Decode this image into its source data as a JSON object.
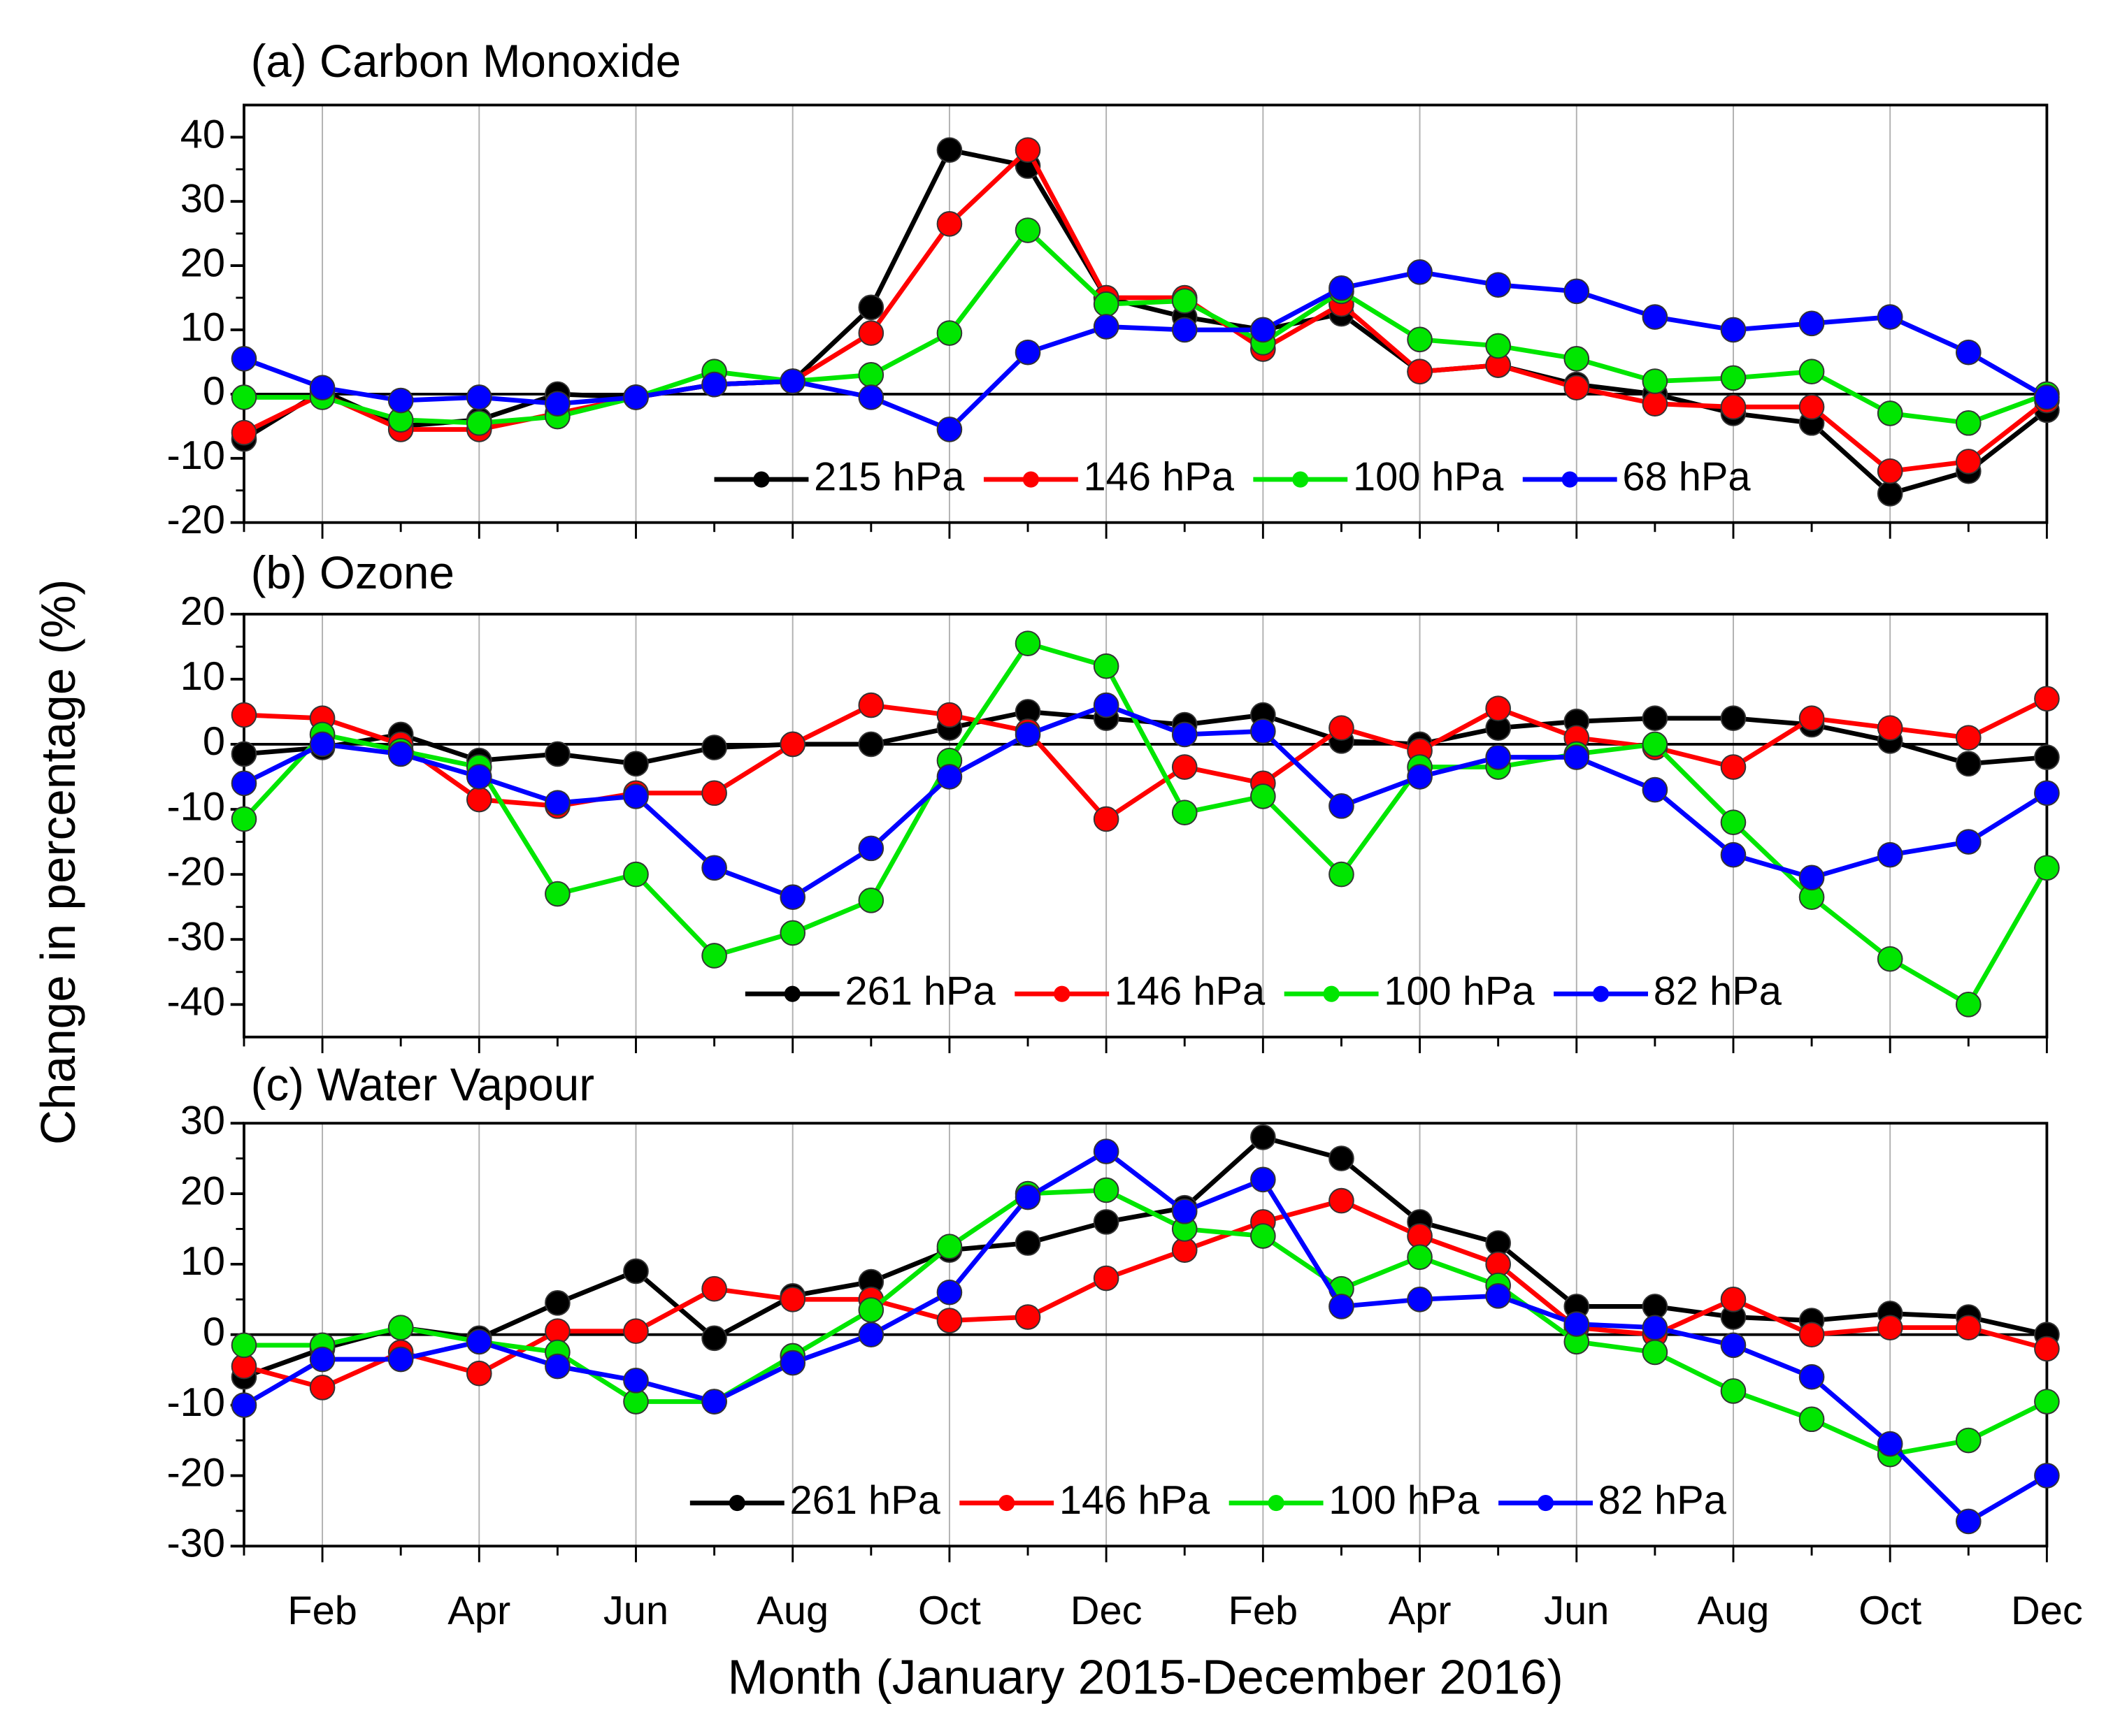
{
  "chart_data": [
    {
      "type": "line",
      "title": "(a) Carbon Monoxide",
      "ylim": [
        -20,
        45
      ],
      "yticks": [
        -20,
        -10,
        0,
        10,
        20,
        30,
        40
      ],
      "grid": "x",
      "legend": "lower center",
      "series": [
        {
          "name": "215 hPa",
          "color": "#000000",
          "values": [
            -7,
            0.5,
            -5,
            -4,
            0,
            -0.5,
            1.5,
            2,
            13.5,
            38,
            35.5,
            15,
            12,
            10,
            12.5,
            3.5,
            4.5,
            1.5,
            0,
            -3,
            -4.5,
            -15.5,
            -12,
            -2.5
          ]
        },
        {
          "name": "146 hPa",
          "color": "#ff0000",
          "values": [
            -6,
            0,
            -5.5,
            -5.5,
            -3,
            -0.5,
            1.5,
            2,
            9.5,
            26.5,
            38,
            15,
            15,
            7,
            14,
            3.5,
            4.5,
            1,
            -1.5,
            -2,
            -2,
            -12,
            -10.5,
            -1
          ]
        },
        {
          "name": "100 hPa",
          "color": "#00e600",
          "values": [
            -0.5,
            -0.5,
            -4,
            -4.5,
            -3.5,
            -0.5,
            3.5,
            2,
            3,
            9.5,
            25.5,
            14,
            14.5,
            8,
            16,
            8.5,
            7.5,
            5.5,
            2,
            2.5,
            3.5,
            -3,
            -4.5,
            0
          ]
        },
        {
          "name": "68 hPa",
          "color": "#0000ff",
          "values": [
            5.5,
            1,
            -1,
            -0.5,
            -1.5,
            -0.5,
            1.5,
            2,
            -0.5,
            -5.5,
            6.5,
            10.5,
            10,
            10,
            16.5,
            19,
            17,
            16,
            12,
            10,
            11,
            12,
            6.5,
            -0.5
          ]
        }
      ]
    },
    {
      "type": "line",
      "title": "(b) Ozone",
      "y_label": "Change in percentage (%)",
      "ylim": [
        -45,
        20
      ],
      "yticks": [
        -40,
        -30,
        -20,
        -10,
        0,
        10,
        20
      ],
      "grid": "x",
      "legend": "lower center",
      "series": [
        {
          "name": "261 hPa",
          "color": "#000000",
          "values": [
            -1.5,
            -0.5,
            1.5,
            -2.5,
            -1.5,
            -3,
            -0.5,
            0,
            0,
            2.5,
            5,
            4,
            3,
            4.5,
            0.5,
            0,
            2.5,
            3.5,
            4,
            4,
            3,
            0.5,
            -3,
            -2
          ]
        },
        {
          "name": "146 hPa",
          "color": "#ff0000",
          "values": [
            4.5,
            4,
            0,
            -8.5,
            -9.5,
            -7.5,
            -7.5,
            0,
            6,
            4.5,
            2,
            -11.5,
            -3.5,
            -6,
            2.5,
            -1,
            5.5,
            1,
            -0.5,
            -3.5,
            4,
            2.5,
            1,
            7
          ]
        },
        {
          "name": "100 hPa",
          "color": "#00e600",
          "values": [
            -11.5,
            1.5,
            -1,
            -3.5,
            -23,
            -20,
            -32.5,
            -29,
            -24,
            -2.5,
            15.5,
            12,
            -10.5,
            -8,
            -20,
            -3.5,
            -3.5,
            -1.5,
            0,
            -12,
            -23.5,
            -33,
            -40,
            -19
          ]
        },
        {
          "name": "82 hPa",
          "color": "#0000ff",
          "values": [
            -6,
            0,
            -1.5,
            -5,
            -9,
            -8,
            -19,
            -23.5,
            -16,
            -5,
            1.5,
            6,
            1.5,
            2,
            -9.5,
            -5,
            -2,
            -2,
            -7,
            -17,
            -20.5,
            -17,
            -15,
            -7.5
          ]
        }
      ]
    },
    {
      "type": "line",
      "title": "(c) Water Vapour",
      "x_label": "Month (January 2015-December 2016)",
      "ylim": [
        -30,
        30
      ],
      "yticks": [
        -30,
        -20,
        -10,
        0,
        10,
        20,
        30
      ],
      "grid": "x",
      "legend": "lower center",
      "categories": [
        null,
        "Feb",
        null,
        "Apr",
        null,
        "Jun",
        null,
        "Aug",
        null,
        "Oct",
        null,
        "Dec",
        null,
        "Feb",
        null,
        "Apr",
        null,
        "Jun",
        null,
        "Aug",
        null,
        "Oct",
        null,
        "Dec"
      ],
      "series": [
        {
          "name": "261 hPa",
          "color": "#000000",
          "values": [
            -6,
            -2,
            1,
            -0.5,
            4.5,
            9,
            -0.5,
            5.5,
            7.5,
            12,
            13,
            16,
            18,
            28,
            25,
            16,
            13,
            4,
            4,
            2.5,
            2,
            3,
            2.5,
            0
          ]
        },
        {
          "name": "146 hPa",
          "color": "#ff0000",
          "values": [
            -4.5,
            -7.5,
            -2.5,
            -5.5,
            0.5,
            0.5,
            6.5,
            5,
            5,
            2,
            2.5,
            8,
            12,
            16,
            19,
            14,
            10,
            1,
            0,
            5,
            0,
            1,
            1,
            -2
          ]
        },
        {
          "name": "100 hPa",
          "color": "#00e600",
          "values": [
            -1.5,
            -1.5,
            1,
            -1,
            -2.5,
            -9.5,
            -9.5,
            -3,
            3.5,
            12.5,
            20,
            20.5,
            15,
            14,
            6.5,
            11,
            7,
            -1,
            -2.5,
            -8,
            -12,
            -17,
            -15,
            -9.5
          ]
        },
        {
          "name": "82 hPa",
          "color": "#0000ff",
          "values": [
            -10,
            -3.5,
            -3.5,
            -1,
            -4.5,
            -6.5,
            -9.5,
            -4,
            0,
            6,
            19.5,
            26,
            17.5,
            22,
            4,
            5,
            5.5,
            1.5,
            1,
            -1.5,
            -6,
            -15.5,
            -26.5,
            -20
          ]
        }
      ]
    }
  ]
}
